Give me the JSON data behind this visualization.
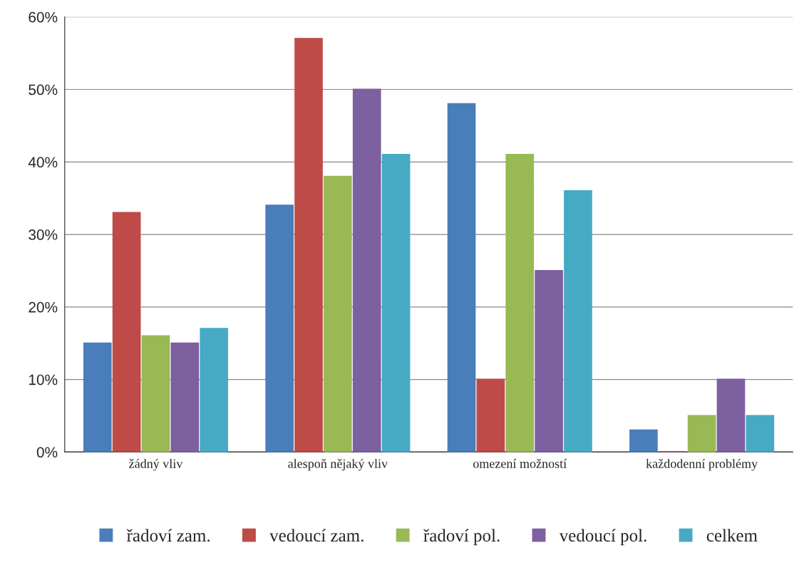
{
  "chart_data": {
    "type": "bar",
    "categories": [
      "žádný vliv",
      "alespoň nějaký vliv",
      "omezení možností",
      "každodenní problémy"
    ],
    "series": [
      {
        "name": "řadoví zam.",
        "color": "#4a7ebb",
        "values": [
          15,
          34,
          48,
          3
        ]
      },
      {
        "name": "vedoucí zam.",
        "color": "#be4b48",
        "values": [
          33,
          57,
          10,
          0
        ]
      },
      {
        "name": "řadoví pol.",
        "color": "#98b954",
        "values": [
          16,
          38,
          41,
          5
        ]
      },
      {
        "name": "vedoucí pol.",
        "color": "#7d60a0",
        "values": [
          15,
          50,
          25,
          10
        ]
      },
      {
        "name": "celkem",
        "color": "#46aac5",
        "values": [
          17,
          41,
          36,
          5
        ]
      }
    ],
    "ylim": [
      0,
      60
    ],
    "yticks": [
      {
        "value": 0,
        "label": "0%"
      },
      {
        "value": 10,
        "label": "10%"
      },
      {
        "value": 20,
        "label": "20%"
      },
      {
        "value": 30,
        "label": "30%"
      },
      {
        "value": 40,
        "label": "40%"
      },
      {
        "value": 50,
        "label": "50%"
      },
      {
        "value": 60,
        "label": "60%"
      }
    ],
    "grid": "y",
    "legend": "bottom"
  }
}
